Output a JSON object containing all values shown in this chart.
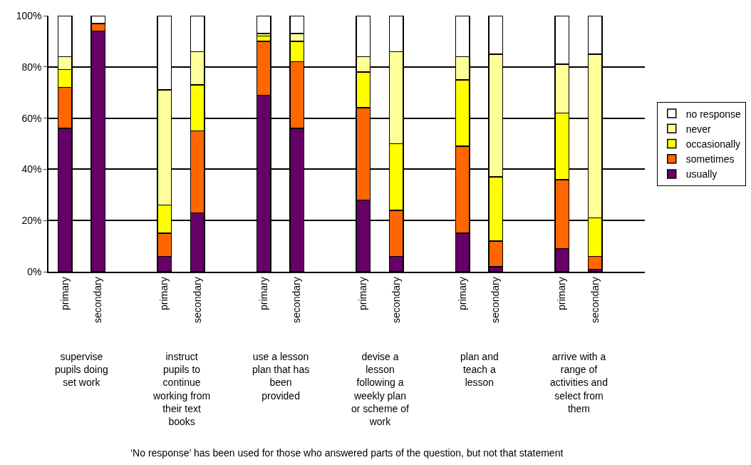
{
  "chart_data": {
    "type": "bar",
    "stacked": true,
    "categories": [
      "primary",
      "secondary",
      null,
      "primary",
      "secondary",
      null,
      "primary",
      "secondary",
      null,
      "primary",
      "secondary",
      null,
      "primary",
      "secondary",
      null,
      "primary",
      "secondary",
      null
    ],
    "series": [
      {
        "name": "usually",
        "color": "#660066",
        "values": [
          56,
          94,
          null,
          6,
          23,
          null,
          69,
          56,
          null,
          28,
          6,
          null,
          15,
          2,
          null,
          9,
          1,
          null
        ]
      },
      {
        "name": "sometimes",
        "color": "#ff6600",
        "values": [
          16,
          3,
          null,
          9,
          32,
          null,
          21,
          26,
          null,
          36,
          18,
          null,
          34,
          10,
          null,
          27,
          5,
          null
        ]
      },
      {
        "name": "occasionally",
        "color": "#ffff00",
        "values": [
          7,
          null,
          null,
          11,
          18,
          null,
          2,
          8,
          null,
          14,
          26,
          null,
          26,
          25,
          null,
          26,
          15,
          null
        ]
      },
      {
        "name": "never",
        "color": "#ffff99",
        "values": [
          5,
          null,
          null,
          45,
          13,
          null,
          1,
          3,
          null,
          6,
          36,
          null,
          9,
          48,
          null,
          19,
          64,
          null
        ]
      },
      {
        "name": "no response",
        "color": "#ffffff",
        "values": [
          16,
          3,
          null,
          29,
          14,
          null,
          7,
          7,
          null,
          16,
          14,
          null,
          16,
          15,
          null,
          19,
          15,
          null
        ]
      }
    ],
    "ylim": [
      0,
      100
    ],
    "yticks": [
      {
        "value": 0,
        "label": "0%"
      },
      {
        "value": 20,
        "label": "20%"
      },
      {
        "value": 40,
        "label": "40%"
      },
      {
        "value": 60,
        "label": "60%"
      },
      {
        "value": 80,
        "label": "80%"
      },
      {
        "value": 100,
        "label": "100%"
      }
    ],
    "grid": "y",
    "legend": "right",
    "annotations": [
      "supervise\npupils doing\nset work",
      "instruct\npupils to\ncontinue\nworking from\ntheir text\nbooks",
      "use a lesson\nplan that has\nbeen\nprovided",
      "devise a\nlesson\nfollowing a\nweekly plan\nor scheme of\nwork",
      "plan and\nteach a\nlesson",
      "arrive with a\nrange of\nactivities and\nselect from\nthem",
      "‘No response’ has been used for those who answered parts of the question, but not that statement"
    ]
  }
}
